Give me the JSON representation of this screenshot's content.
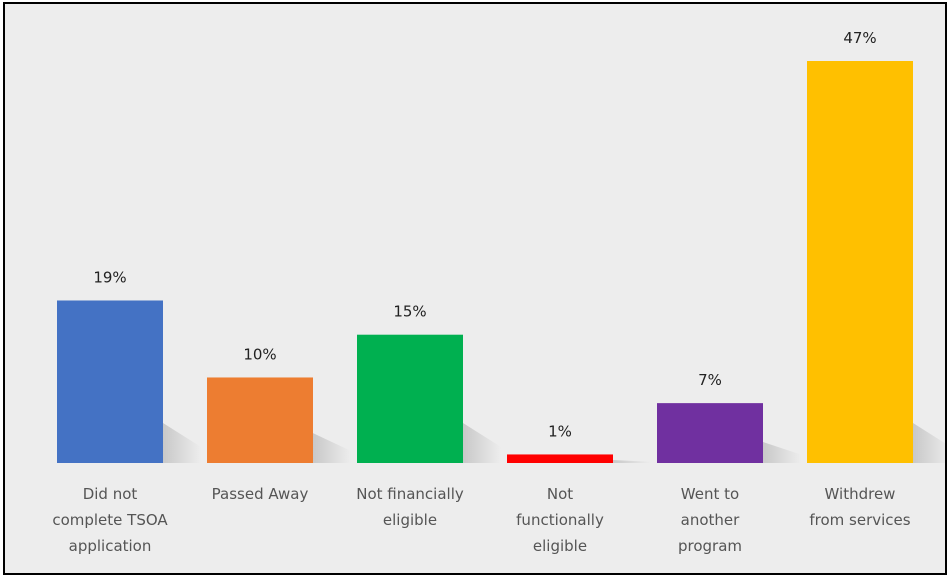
{
  "chart_data": {
    "type": "bar",
    "categories": [
      [
        "Did not",
        "complete TSOA",
        "application"
      ],
      [
        "Passed Away"
      ],
      [
        "Not financially",
        "eligible"
      ],
      [
        "Not",
        "functionally",
        "eligible"
      ],
      [
        "Went to",
        "another",
        "program"
      ],
      [
        "Withdrew",
        "from services"
      ]
    ],
    "values": [
      19,
      10,
      15,
      1,
      7,
      47
    ],
    "value_labels": [
      "19%",
      "10%",
      "15%",
      "1%",
      "7%",
      "47%"
    ],
    "colors": [
      "#4472c4",
      "#ed7d31",
      "#00b050",
      "#ff0000",
      "#7030a0",
      "#ffc000"
    ],
    "title": "",
    "xlabel": "",
    "ylabel": "",
    "ylim": [
      0,
      47
    ],
    "grid": false,
    "legend": "none"
  }
}
